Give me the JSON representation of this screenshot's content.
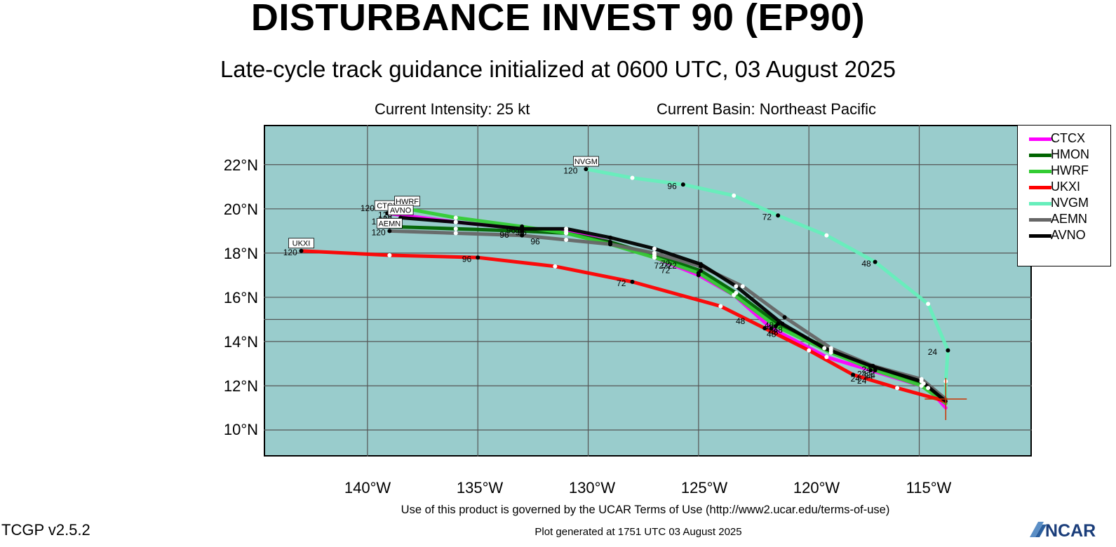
{
  "header": {
    "title": "DISTURBANCE INVEST 90 (EP90)",
    "subtitle": "Late-cycle track guidance initialized at 0600 UTC, 03 August 2025",
    "intensity": "Current Intensity: 25 kt",
    "basin": "Current Basin: Northeast Pacific"
  },
  "map": {
    "lat_range": [
      8.8,
      23.8
    ],
    "lon_range": [
      -144.7,
      -109.9
    ],
    "gridlines": {
      "lat": [
        10,
        12,
        14,
        15,
        16,
        18,
        20,
        22
      ],
      "lon": [
        -140,
        -135,
        -130,
        -125,
        -120,
        -115
      ]
    },
    "lat_labels": [
      "22°N",
      "20°N",
      "18°N",
      "16°N",
      "14°N",
      "12°N",
      "10°N"
    ],
    "lon_labels": [
      "140°W",
      "135°W",
      "130°W",
      "125°W",
      "120°W",
      "115°W"
    ],
    "ocean_color": "#99cccc",
    "storm_center": {
      "lon": -113.8,
      "lat": 11.4
    },
    "tracks": [
      {
        "name": "CTCX",
        "color": "#ff00ff",
        "points": [
          [
            -113.8,
            11.0
          ],
          [
            -114.6,
            11.9
          ],
          [
            -117.2,
            12.7
          ],
          [
            -119.2,
            13.3
          ],
          [
            -121.7,
            14.6
          ],
          [
            -123.4,
            16.1
          ],
          [
            -125.0,
            17.0
          ],
          [
            -127.0,
            17.8
          ],
          [
            -129.0,
            18.5
          ],
          [
            -131.0,
            19.0
          ],
          [
            -133.0,
            19.1
          ],
          [
            -136.0,
            19.4
          ],
          [
            -139.1,
            19.8
          ]
        ],
        "end_label": "CTCX",
        "hour_labels": [
          {
            "text": "24",
            "lon": -117.2,
            "lat": 12.35
          },
          {
            "text": "48",
            "lon": -121.7,
            "lat": 14.2
          },
          {
            "text": "72",
            "lon": -126.8,
            "lat": 17.3
          },
          {
            "text": "96",
            "lon": -133.8,
            "lat": 18.7
          },
          {
            "text": "120",
            "lon": -139.2,
            "lat": 19.6
          }
        ]
      },
      {
        "name": "HMON",
        "color": "#006400",
        "points": [
          [
            -113.8,
            11.3
          ],
          [
            -114.8,
            12.1
          ],
          [
            -117.0,
            12.8
          ],
          [
            -119.0,
            13.6
          ],
          [
            -121.4,
            14.8
          ],
          [
            -123.3,
            16.2
          ],
          [
            -124.9,
            17.2
          ],
          [
            -127.0,
            17.9
          ],
          [
            -129.0,
            18.5
          ],
          [
            -131.0,
            18.9
          ],
          [
            -133.0,
            19.0
          ],
          [
            -136.0,
            19.1
          ],
          [
            -139.0,
            19.2
          ]
        ],
        "end_label": "",
        "hour_labels": [
          {
            "text": "24",
            "lon": -117.6,
            "lat": 12.4
          },
          {
            "text": "48",
            "lon": -121.4,
            "lat": 14.4
          },
          {
            "text": "72",
            "lon": -126.5,
            "lat": 17.4
          },
          {
            "text": "96",
            "lon": -133.5,
            "lat": 18.9
          },
          {
            "text": "120",
            "lon": -139.5,
            "lat": 19.3
          }
        ]
      },
      {
        "name": "HWRF",
        "color": "#33cc33",
        "points": [
          [
            -113.8,
            11.2
          ],
          [
            -114.9,
            12.0
          ],
          [
            -117.0,
            12.7
          ],
          [
            -119.0,
            13.5
          ],
          [
            -121.5,
            14.7
          ],
          [
            -123.4,
            16.1
          ],
          [
            -125.0,
            17.1
          ],
          [
            -127.0,
            17.8
          ],
          [
            -129.0,
            18.4
          ],
          [
            -131.0,
            18.9
          ],
          [
            -133.0,
            19.2
          ],
          [
            -136.0,
            19.6
          ],
          [
            -138.2,
            20.0
          ]
        ],
        "end_label": "HWRF",
        "hour_labels": [
          {
            "text": "24",
            "lon": -117.9,
            "lat": 12.2
          },
          {
            "text": "48",
            "lon": -121.7,
            "lat": 14.5
          },
          {
            "text": "72",
            "lon": -126.4,
            "lat": 17.3
          },
          {
            "text": "96",
            "lon": -133.0,
            "lat": 18.8
          },
          {
            "text": "120",
            "lon": -140.0,
            "lat": 19.9
          }
        ]
      },
      {
        "name": "UKXI",
        "color": "#ff0000",
        "points": [
          [
            -113.8,
            11.3
          ],
          [
            -116.0,
            11.9
          ],
          [
            -118.0,
            12.5
          ],
          [
            -120.0,
            13.6
          ],
          [
            -122.0,
            14.6
          ],
          [
            -124.0,
            15.6
          ],
          [
            -128.0,
            16.7
          ],
          [
            -131.5,
            17.4
          ],
          [
            -135.0,
            17.8
          ],
          [
            -139.0,
            17.9
          ],
          [
            -143.0,
            18.1
          ]
        ],
        "end_label": "UKXI",
        "hour_labels": [
          {
            "text": "24",
            "lon": -117.6,
            "lat": 12.1
          },
          {
            "text": "48",
            "lon": -123.1,
            "lat": 14.8
          },
          {
            "text": "72",
            "lon": -128.5,
            "lat": 16.5
          },
          {
            "text": "96",
            "lon": -135.5,
            "lat": 17.6
          },
          {
            "text": "120",
            "lon": -143.5,
            "lat": 17.9
          }
        ]
      },
      {
        "name": "NVGM",
        "color": "#66eebb",
        "points": [
          [
            -113.8,
            11.4
          ],
          [
            -113.8,
            12.2
          ],
          [
            -113.7,
            13.6
          ],
          [
            -114.6,
            15.7
          ],
          [
            -117.0,
            17.6
          ],
          [
            -119.2,
            18.8
          ],
          [
            -121.4,
            19.7
          ],
          [
            -123.4,
            20.6
          ],
          [
            -125.7,
            21.1
          ],
          [
            -128.0,
            21.4
          ],
          [
            -130.1,
            21.8
          ]
        ],
        "end_label": "NVGM",
        "hour_labels": [
          {
            "text": "24",
            "lon": -114.4,
            "lat": 13.4
          },
          {
            "text": "48",
            "lon": -117.4,
            "lat": 17.4
          },
          {
            "text": "72",
            "lon": -121.9,
            "lat": 19.5
          },
          {
            "text": "96",
            "lon": -126.2,
            "lat": 20.9
          },
          {
            "text": "120",
            "lon": -130.8,
            "lat": 21.6
          }
        ]
      },
      {
        "name": "AEMN",
        "color": "#666666",
        "points": [
          [
            -113.8,
            11.4
          ],
          [
            -114.9,
            12.3
          ],
          [
            -117.1,
            12.9
          ],
          [
            -119.0,
            13.7
          ],
          [
            -121.1,
            15.1
          ],
          [
            -123.0,
            16.5
          ],
          [
            -124.9,
            17.4
          ],
          [
            -127.0,
            18.0
          ],
          [
            -129.0,
            18.4
          ],
          [
            -131.0,
            18.6
          ],
          [
            -133.0,
            18.8
          ],
          [
            -136.0,
            18.9
          ],
          [
            -139.0,
            19.0
          ]
        ],
        "end_label": "AEMN",
        "hour_labels": [
          {
            "text": "24",
            "lon": -117.3,
            "lat": 12.3
          },
          {
            "text": "48",
            "lon": -121.6,
            "lat": 14.3
          },
          {
            "text": "72",
            "lon": -126.5,
            "lat": 17.1
          },
          {
            "text": "96",
            "lon": -132.4,
            "lat": 18.4
          },
          {
            "text": "120",
            "lon": -139.5,
            "lat": 18.8
          }
        ]
      },
      {
        "name": "AVNO",
        "color": "#000000",
        "points": [
          [
            -113.8,
            11.3
          ],
          [
            -114.9,
            12.2
          ],
          [
            -117.2,
            12.9
          ],
          [
            -119.3,
            13.7
          ],
          [
            -121.2,
            14.8
          ],
          [
            -123.3,
            16.5
          ],
          [
            -124.9,
            17.5
          ],
          [
            -127.0,
            18.2
          ],
          [
            -129.0,
            18.7
          ],
          [
            -131.0,
            19.1
          ],
          [
            -133.0,
            19.1
          ],
          [
            -136.0,
            19.4
          ],
          [
            -138.5,
            19.6
          ]
        ],
        "end_label": "AVNO",
        "hour_labels": [
          {
            "text": "24",
            "lon": -117.4,
            "lat": 12.6
          },
          {
            "text": "48",
            "lon": -121.8,
            "lat": 14.6
          },
          {
            "text": "72",
            "lon": -126.2,
            "lat": 17.3
          },
          {
            "text": "96",
            "lon": -133.1,
            "lat": 18.8
          },
          {
            "text": "120",
            "lon": -139.2,
            "lat": 19.4
          }
        ]
      }
    ]
  },
  "terms": "Use of this product is governed by the UCAR Terms of Use (http://www2.ucar.edu/terms-of-use)",
  "version": "TCGP v2.5.2",
  "generated": "Plot generated at 1751 UTC   03 August 2025",
  "logo": "NCAR"
}
